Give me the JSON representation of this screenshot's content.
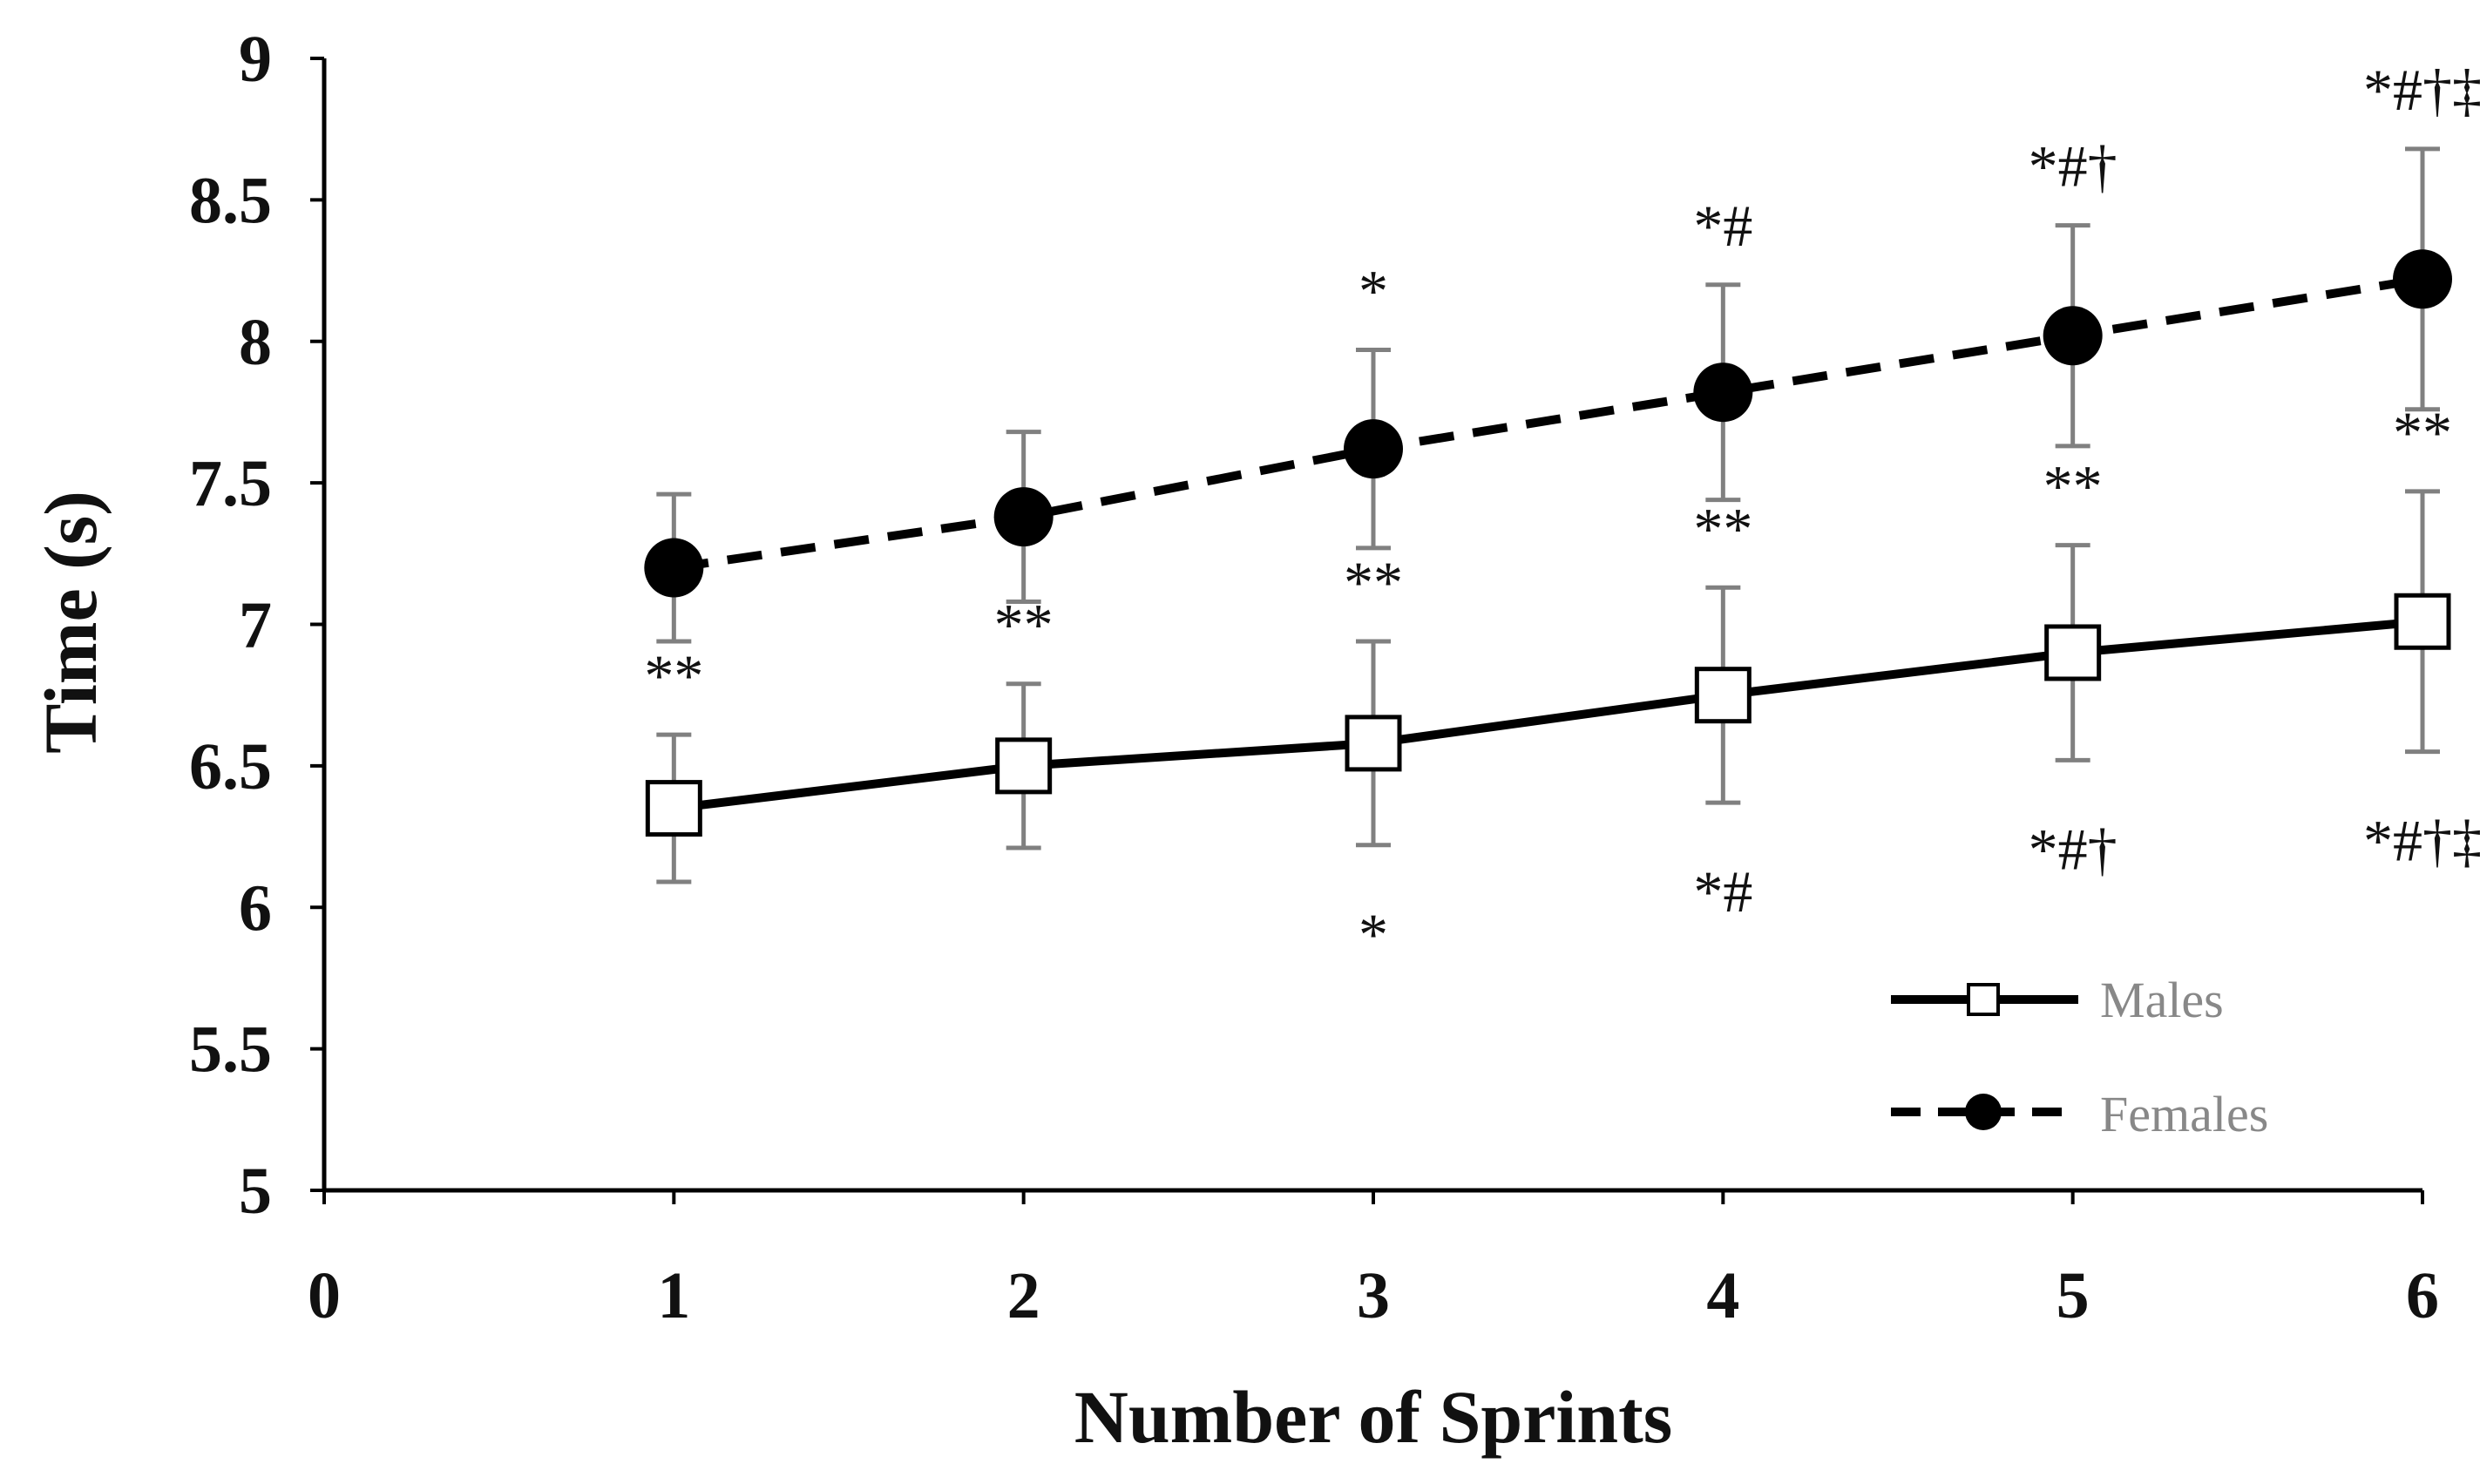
{
  "chart_data": {
    "type": "line",
    "xlabel": "Number of Sprints",
    "ylabel": "Time (s)",
    "xlim": [
      0,
      6
    ],
    "ylim": [
      5,
      9
    ],
    "x_ticks": [
      "0",
      "1",
      "2",
      "3",
      "4",
      "5",
      "6"
    ],
    "y_ticks": [
      "5",
      "5.5",
      "6",
      "6.5",
      "7",
      "7.5",
      "8",
      "8.5",
      "9"
    ],
    "grid": false,
    "legend_position": "bottom-right",
    "x": [
      1,
      2,
      3,
      4,
      5,
      6
    ],
    "series": [
      {
        "name": "Males",
        "line_style": "solid",
        "marker": "open-square",
        "values": [
          6.35,
          6.5,
          6.58,
          6.75,
          6.9,
          7.01
        ],
        "error": [
          0.26,
          0.29,
          0.36,
          0.38,
          0.38,
          0.46
        ],
        "annotations_above": [
          "**",
          "**",
          "**",
          "**",
          "**",
          "**"
        ],
        "annotations_below": [
          "",
          "",
          "*",
          "*#",
          "*#†",
          "*#†‡"
        ]
      },
      {
        "name": "Females",
        "line_style": "dashed",
        "marker": "filled-circle",
        "values": [
          7.2,
          7.38,
          7.62,
          7.82,
          8.02,
          8.22
        ],
        "error": [
          0.26,
          0.3,
          0.35,
          0.38,
          0.39,
          0.46
        ],
        "annotations_above": [
          "",
          "",
          "*",
          "*#",
          "*#†",
          "*#†‡"
        ]
      }
    ],
    "colors": {
      "line": "#000000",
      "error_bar": "#808080",
      "legend_text": "#888888"
    }
  }
}
